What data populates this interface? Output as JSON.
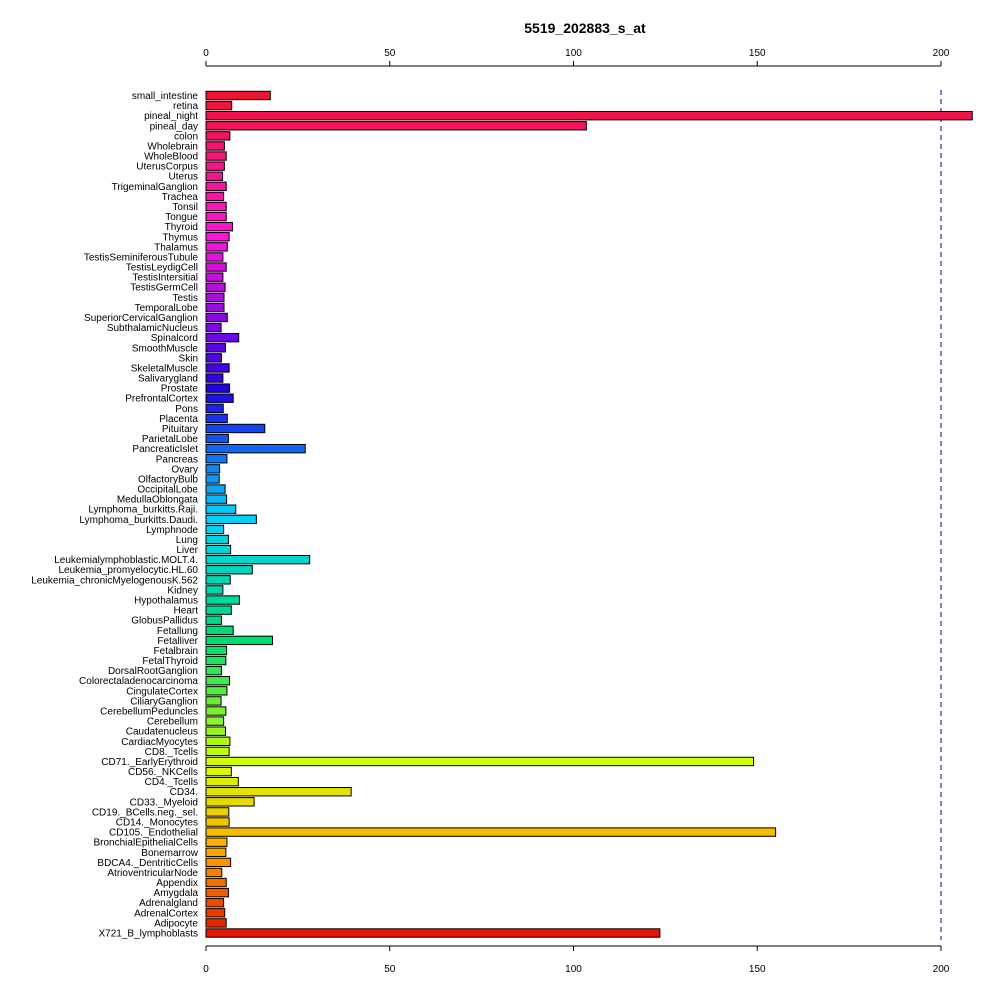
{
  "chart_data": {
    "type": "bar",
    "orientation": "horizontal",
    "title": "5519_202883_s_at",
    "xlabel": "",
    "ylabel": "",
    "xlim": [
      0,
      210
    ],
    "x_ticks": [
      0,
      50,
      100,
      150,
      200
    ],
    "reference_line": 200,
    "categories": [
      "small_intestine",
      "retina",
      "pineal_night",
      "pineal_day",
      "colon",
      "Wholebrain",
      "WholeBlood",
      "UterusCorpus",
      "Uterus",
      "TrigeminalGanglion",
      "Trachea",
      "Tonsil",
      "Tongue",
      "Thyroid",
      "Thymus",
      "Thalamus",
      "TestisSeminiferousTubule",
      "TestisLeydigCell",
      "TestisIntersitial",
      "TestisGermCell",
      "Testis",
      "TemporalLobe",
      "SuperiorCervicalGanglion",
      "SubthalamicNucleus",
      "Spinalcord",
      "SmoothMuscle",
      "Skin",
      "SkeletalMuscle",
      "Salivarygland",
      "Prostate",
      "PrefrontalCortex",
      "Pons",
      "Placenta",
      "Pituitary",
      "ParietalLobe",
      "PancreaticIslet",
      "Pancreas",
      "Ovary",
      "OlfactoryBulb",
      "OccipitalLobe",
      "MedullaOblongata",
      "Lymphoma_burkitts.Raji.",
      "Lymphoma_burkitts.Daudi.",
      "Lymphnode",
      "Lung",
      "Liver",
      "Leukemialymphoblastic.MOLT.4.",
      "Leukemia_promyelocytic.HL.60",
      "Leukemia_chronicMyelogenousK.562",
      "Kidney",
      "Hypothalamus",
      "Heart",
      "GlobusPallidus",
      "Fetallung",
      "Fetalliver",
      "Fetalbrain",
      "FetalThyroid",
      "DorsalRootGanglion",
      "Colorectaladenocarcinoma",
      "CingulateCortex",
      "CiliaryGanglion",
      "CerebellumPeduncles",
      "Cerebellum",
      "Caudatenucleus",
      "CardiacMyocytes",
      "CD8._Tcells",
      "CD71._EarlyErythroid",
      "CD56._NKCells",
      "CD4._Tcells",
      "CD34.",
      "CD33._Myeloid",
      "CD19._BCells.neg._sel.",
      "CD14._Monocytes",
      "CD105._Endothelial",
      "BronchialEpithelialCells",
      "Bonemarrow",
      "BDCA4._DentriticCells",
      "AtrioventricularNode",
      "Appendix",
      "Amygdala",
      "Adrenalgland",
      "AdrenalCortex",
      "Adipocyte",
      "X721_B_lymphoblasts"
    ],
    "values": [
      17.5,
      7,
      208.5,
      103.5,
      6.5,
      5,
      5.5,
      5,
      4.5,
      5.5,
      4.8,
      5.5,
      5.5,
      7.2,
      6.3,
      5.8,
      4.6,
      5.5,
      4.6,
      5.2,
      4.9,
      4.9,
      5.8,
      4.1,
      8.9,
      5.3,
      4.2,
      6.3,
      4.6,
      6.4,
      7.4,
      4.7,
      5.8,
      16,
      6.1,
      27,
      5.7,
      3.7,
      3.6,
      5.2,
      5.6,
      8.1,
      13.7,
      4.8,
      6.1,
      6.7,
      28.2,
      12.6,
      6.6,
      4.6,
      9.1,
      6.9,
      4.2,
      7.4,
      18.1,
      5.6,
      5.4,
      4.2,
      6.4,
      5.7,
      4.1,
      5.4,
      4.8,
      5.3,
      6.5,
      6.3,
      149,
      6.9,
      8.8,
      39.5,
      13.1,
      6.2,
      6.3,
      155,
      5.7,
      5.4,
      6.7,
      4.3,
      5.5,
      6.1,
      4.8,
      5.1,
      5.5,
      123.5
    ]
  }
}
